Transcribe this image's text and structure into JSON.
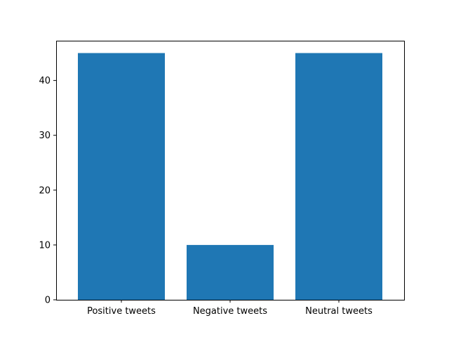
{
  "chart_data": {
    "type": "bar",
    "title": "",
    "xlabel": "",
    "ylabel": "",
    "categories": [
      "Positive tweets",
      "Negative tweets",
      "Neutral tweets"
    ],
    "values": [
      45,
      10,
      45
    ],
    "ylim": [
      0,
      47.25
    ],
    "yticks": [
      0,
      10,
      20,
      30,
      40
    ],
    "bar_color": "#1f77b4",
    "grid": false,
    "legend": "none"
  }
}
